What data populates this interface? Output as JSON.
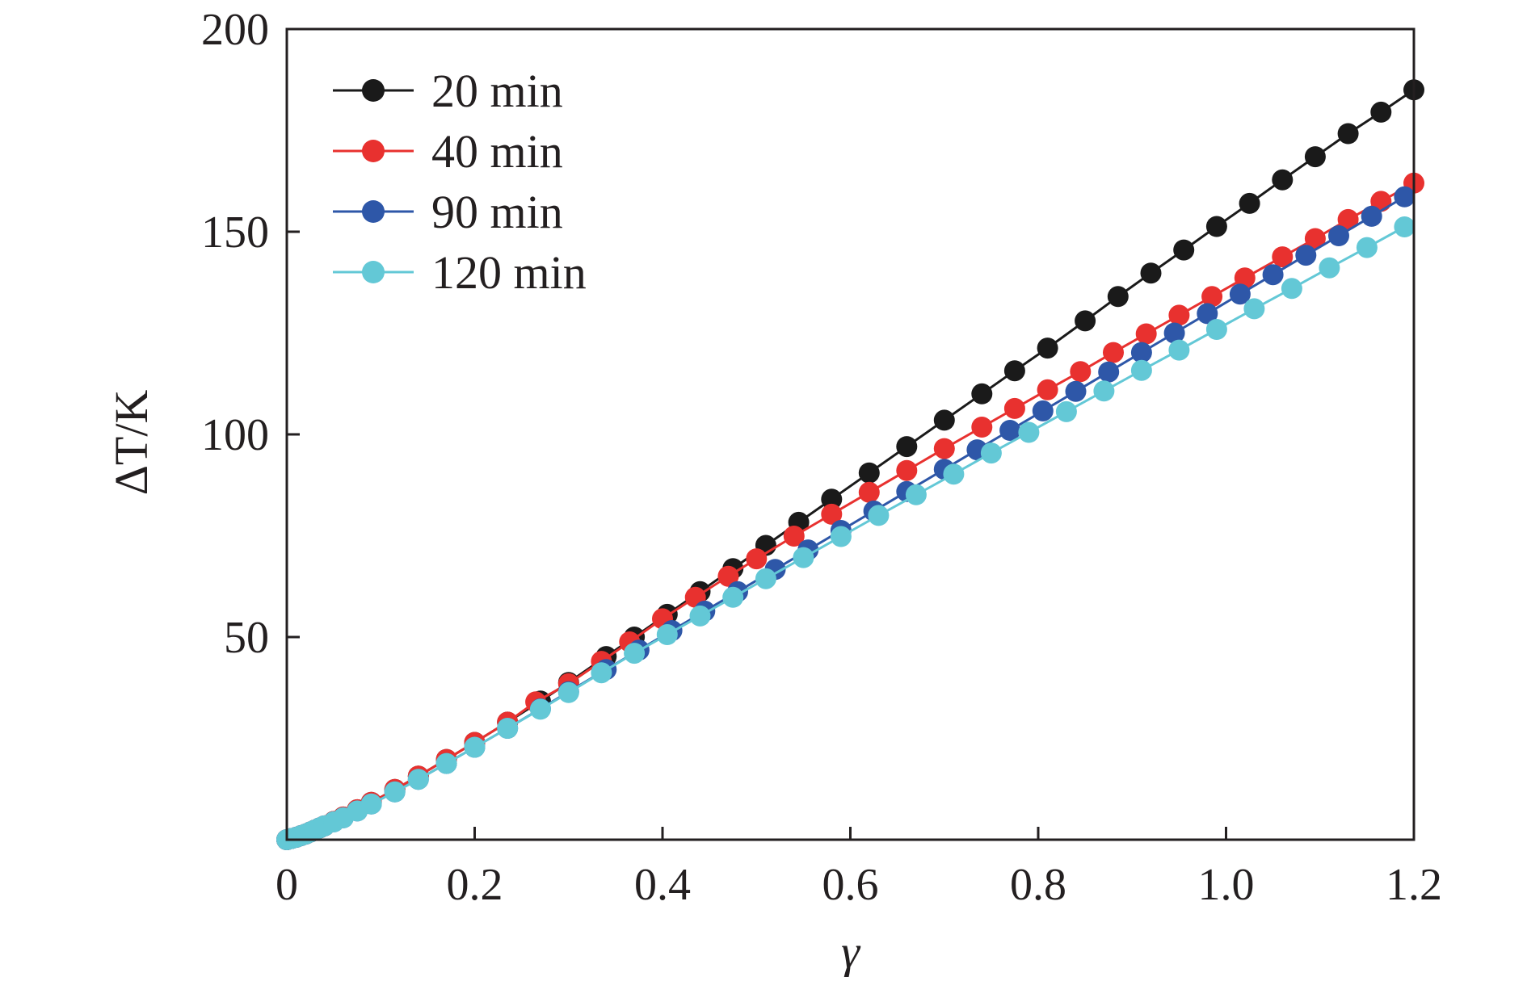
{
  "chart_data": {
    "type": "line",
    "xlabel": "γ",
    "ylabel_prefix": "ΔT",
    "ylabel_symbol": "T",
    "ylabel_unit": "/K",
    "xlim": [
      0,
      1.2
    ],
    "ylim": [
      0,
      200
    ],
    "xticks": [
      0,
      0.2,
      0.4,
      0.6,
      0.8,
      1.0,
      1.2
    ],
    "xtick_labels": [
      "0",
      "0.2",
      "0.4",
      "0.6",
      "0.8",
      "1.0",
      "1.2"
    ],
    "yticks": [
      50,
      100,
      150,
      200
    ],
    "ytick_labels": [
      "50",
      "100",
      "150",
      "200"
    ],
    "grid": false,
    "legend_position": "top-left",
    "markers": "filled-circle",
    "series": [
      {
        "name": "20 min",
        "color": "#1a1a1a",
        "x": [
          0,
          0.005,
          0.01,
          0.015,
          0.02,
          0.025,
          0.03,
          0.035,
          0.04,
          0.05,
          0.06,
          0.075,
          0.09,
          0.115,
          0.14,
          0.17,
          0.2,
          0.235,
          0.27,
          0.3,
          0.34,
          0.37,
          0.405,
          0.44,
          0.475,
          0.51,
          0.545,
          0.58,
          0.62,
          0.66,
          0.7,
          0.74,
          0.775,
          0.81,
          0.85,
          0.885,
          0.92,
          0.955,
          0.99,
          1.025,
          1.06,
          1.095,
          1.13,
          1.165,
          1.2
        ],
        "y": [
          0,
          0.3,
          0.6,
          1.0,
          1.4,
          1.9,
          2.4,
          2.9,
          3.4,
          4.5,
          5.6,
          7.4,
          9.2,
          12.4,
          15.7,
          19.8,
          24.0,
          29.0,
          34.2,
          38.8,
          45.2,
          50.0,
          55.6,
          61.2,
          66.9,
          72.6,
          78.3,
          84.0,
          90.5,
          97.0,
          103.5,
          110.0,
          115.7,
          121.3,
          128.0,
          134.0,
          139.8,
          145.5,
          151.3,
          157.0,
          162.8,
          168.5,
          174.2,
          179.5,
          185.0
        ]
      },
      {
        "name": "40 min",
        "color": "#e8312f",
        "x": [
          0,
          0.005,
          0.01,
          0.015,
          0.02,
          0.025,
          0.03,
          0.035,
          0.04,
          0.05,
          0.06,
          0.075,
          0.09,
          0.115,
          0.14,
          0.17,
          0.2,
          0.235,
          0.265,
          0.3,
          0.335,
          0.365,
          0.4,
          0.435,
          0.47,
          0.5,
          0.54,
          0.58,
          0.62,
          0.66,
          0.7,
          0.74,
          0.775,
          0.81,
          0.845,
          0.88,
          0.915,
          0.95,
          0.985,
          1.02,
          1.06,
          1.095,
          1.13,
          1.165,
          1.2
        ],
        "y": [
          0,
          0.3,
          0.6,
          1.0,
          1.4,
          1.9,
          2.4,
          2.9,
          3.4,
          4.5,
          5.6,
          7.4,
          9.2,
          12.4,
          15.7,
          19.8,
          24.0,
          29.0,
          34.0,
          38.5,
          44.0,
          48.8,
          54.5,
          59.8,
          65.0,
          69.3,
          74.9,
          80.3,
          85.7,
          91.1,
          96.5,
          101.8,
          106.4,
          111.0,
          115.5,
          120.2,
          124.8,
          129.4,
          134.0,
          138.6,
          143.8,
          148.3,
          153.0,
          157.5,
          162.0
        ]
      },
      {
        "name": "90 min",
        "color": "#2e57a8",
        "x": [
          0,
          0.005,
          0.01,
          0.015,
          0.02,
          0.025,
          0.03,
          0.035,
          0.04,
          0.05,
          0.06,
          0.075,
          0.09,
          0.115,
          0.14,
          0.17,
          0.2,
          0.235,
          0.27,
          0.3,
          0.34,
          0.375,
          0.41,
          0.445,
          0.48,
          0.52,
          0.555,
          0.59,
          0.625,
          0.66,
          0.7,
          0.735,
          0.77,
          0.805,
          0.84,
          0.875,
          0.91,
          0.945,
          0.98,
          1.015,
          1.05,
          1.085,
          1.12,
          1.155,
          1.19
        ],
        "y": [
          0,
          0.3,
          0.6,
          1.0,
          1.4,
          1.9,
          2.4,
          2.9,
          3.4,
          4.4,
          5.4,
          7.1,
          8.8,
          11.8,
          14.9,
          18.8,
          22.8,
          27.5,
          32.3,
          36.5,
          42.0,
          46.8,
          51.6,
          56.4,
          61.2,
          66.7,
          71.5,
          76.3,
          81.1,
          85.9,
          91.4,
          96.2,
          101.0,
          105.8,
          110.6,
          115.4,
          120.2,
          125.0,
          129.8,
          134.6,
          139.4,
          144.2,
          149.0,
          153.8,
          158.6
        ]
      },
      {
        "name": "120 min",
        "color": "#63c8d6",
        "x": [
          0,
          0.005,
          0.01,
          0.015,
          0.02,
          0.025,
          0.03,
          0.035,
          0.04,
          0.05,
          0.06,
          0.075,
          0.09,
          0.115,
          0.14,
          0.17,
          0.2,
          0.235,
          0.27,
          0.3,
          0.335,
          0.37,
          0.405,
          0.44,
          0.475,
          0.51,
          0.55,
          0.59,
          0.63,
          0.67,
          0.71,
          0.75,
          0.79,
          0.83,
          0.87,
          0.91,
          0.95,
          0.99,
          1.03,
          1.07,
          1.11,
          1.15,
          1.19
        ],
        "y": [
          0,
          0.3,
          0.6,
          1.0,
          1.4,
          1.9,
          2.4,
          2.9,
          3.4,
          4.4,
          5.4,
          7.1,
          8.8,
          11.8,
          14.9,
          18.8,
          22.8,
          27.5,
          32.2,
          36.3,
          41.2,
          46.0,
          50.6,
          55.2,
          59.8,
          64.4,
          69.6,
          74.8,
          80.0,
          85.1,
          90.2,
          95.4,
          100.5,
          105.6,
          110.7,
          115.8,
          120.8,
          125.9,
          131.0,
          136.0,
          141.1,
          146.1,
          151.2
        ]
      }
    ]
  }
}
